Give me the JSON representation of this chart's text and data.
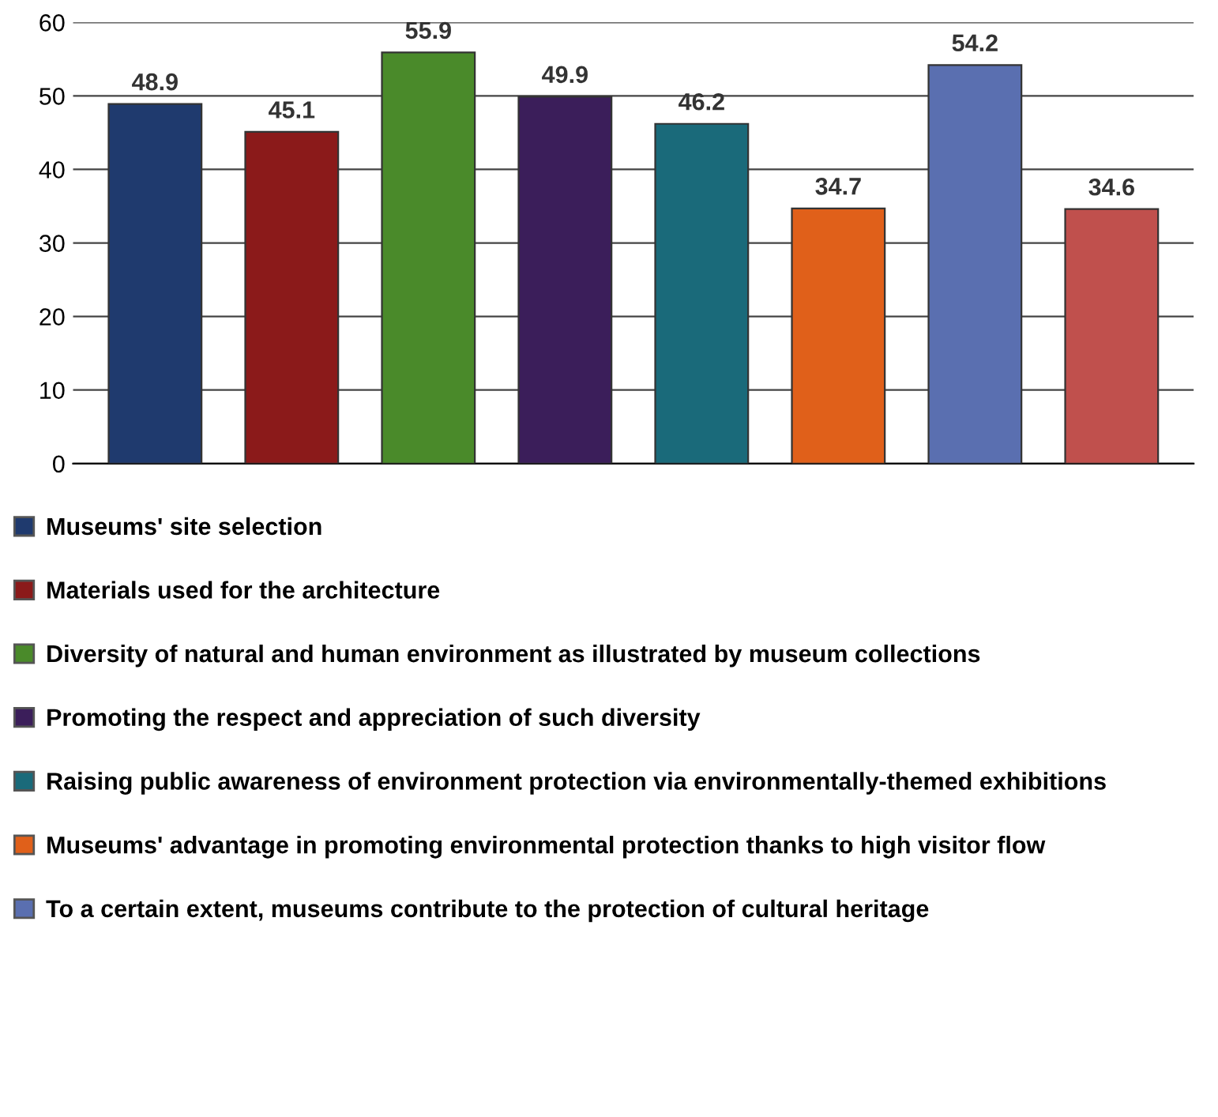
{
  "chart_data": {
    "type": "bar",
    "categories": [
      null,
      null,
      null,
      null,
      null,
      null,
      null,
      null
    ],
    "series": [
      {
        "name": "Museums' site selection",
        "color": "#1f3a6e",
        "values": [
          48.9,
          null,
          null,
          null,
          null,
          null,
          null,
          null
        ]
      },
      {
        "name": "Materials used for the architecture",
        "color": "#8b1a1a",
        "values": [
          null,
          45.1,
          null,
          null,
          null,
          null,
          null,
          null
        ]
      },
      {
        "name": "Diversity of natural and human environment as illustrated by museum collections",
        "color": "#4a8a2a",
        "values": [
          null,
          null,
          55.9,
          null,
          null,
          null,
          null,
          null
        ]
      },
      {
        "name": "Promoting the respect and appreciation of such diversity",
        "color": "#3b1e5a",
        "values": [
          null,
          null,
          null,
          49.9,
          null,
          null,
          null,
          null
        ]
      },
      {
        "name": "Raising public awareness of environment protection via environmentally-themed exhibitions",
        "color": "#1a6a7a",
        "values": [
          null,
          null,
          null,
          null,
          46.2,
          null,
          null,
          null
        ]
      },
      {
        "name": "Museums' advantage in promoting environmental protection thanks to high visitor flow",
        "color": "#e0601a",
        "values": [
          null,
          null,
          null,
          null,
          null,
          34.7,
          null,
          null
        ]
      },
      {
        "name": "To a certain extent, museums contribute to the protection of cultural heritage",
        "color": "#5a6fb0",
        "values": [
          null,
          null,
          null,
          null,
          null,
          null,
          54.2,
          null
        ]
      },
      {
        "color": "#c0504d",
        "values": [
          null,
          null,
          null,
          null,
          null,
          null,
          null,
          34.6
        ]
      }
    ],
    "ylim": [
      0,
      60
    ],
    "yticks": [
      0,
      10,
      20,
      30,
      40,
      50,
      60
    ],
    "grid": "y",
    "data_labels": true,
    "legend": "bottom"
  }
}
